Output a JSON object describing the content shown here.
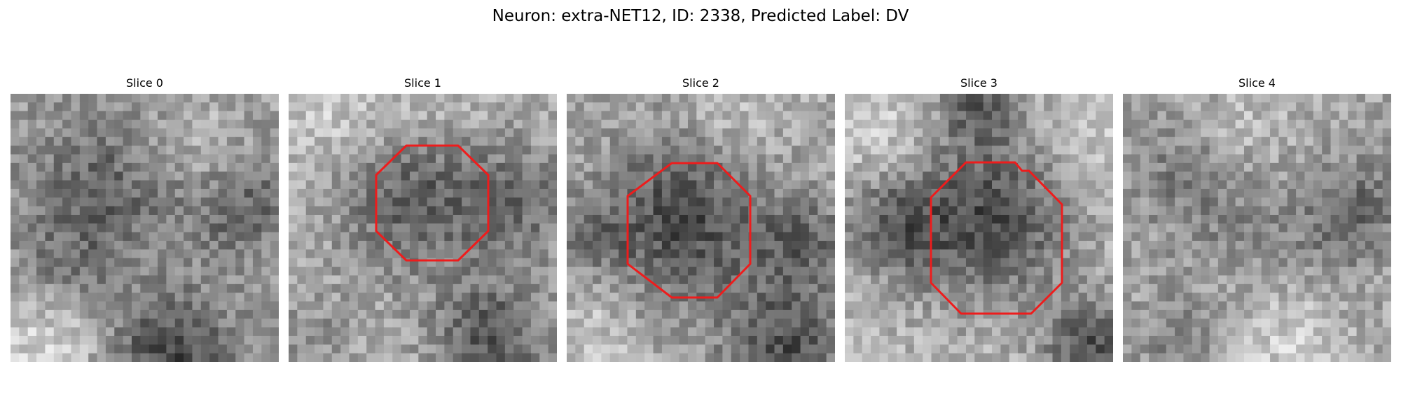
{
  "figure": {
    "title": "Neuron: extra-NET12, ID: 2338, Predicted Label: DV",
    "outline_color": "#ee1c1c",
    "panels": [
      {
        "title": "Slice 0",
        "has_outline": false,
        "seed": 11
      },
      {
        "title": "Slice 1",
        "has_outline": true,
        "seed": 23
      },
      {
        "title": "Slice 2",
        "has_outline": true,
        "seed": 37
      },
      {
        "title": "Slice 3",
        "has_outline": true,
        "seed": 53
      },
      {
        "title": "Slice 4",
        "has_outline": false,
        "seed": 71
      }
    ]
  }
}
